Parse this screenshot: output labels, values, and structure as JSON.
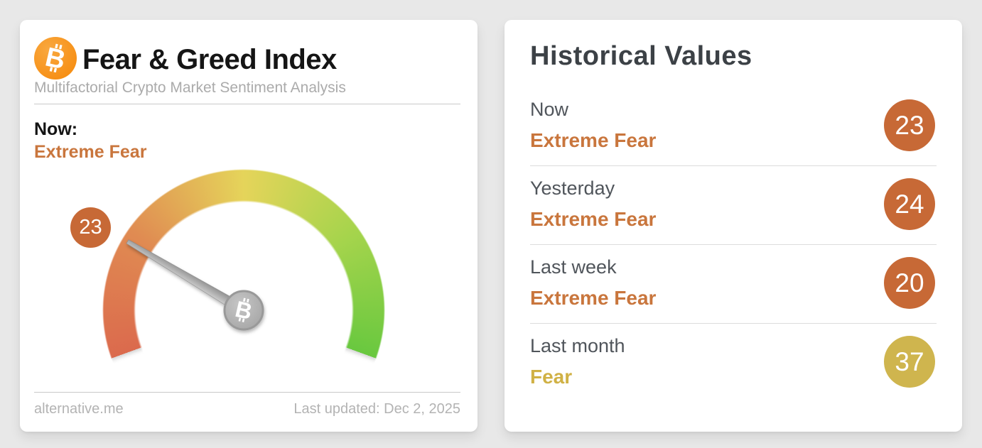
{
  "colors": {
    "accent_orange": "#c76936",
    "accent_orange_text": "#c9763d",
    "accent_gold": "#cfb54e",
    "accent_gold_text": "#d0b145",
    "bitcoin_orange": "#f7931a",
    "needle_gray": "#a7a7a7",
    "card_background": "#ffffff",
    "page_background": "#e8e8e8"
  },
  "left_card": {
    "title": "Fear & Greed Index",
    "subtitle": "Multifactorial Crypto Market Sentiment Analysis",
    "now_label": "Now:",
    "now_sentiment": "Extreme Fear",
    "footer_source": "alternative.me",
    "footer_updated": "Last updated: Dec 2, 2025"
  },
  "right_card": {
    "title": "Historical Values",
    "rows": [
      {
        "label": "Now",
        "sentiment": "Extreme Fear",
        "value": "23",
        "badge_color": "#c76936",
        "sentiment_color": "#c9763d"
      },
      {
        "label": "Yesterday",
        "sentiment": "Extreme Fear",
        "value": "24",
        "badge_color": "#c76936",
        "sentiment_color": "#c9763d"
      },
      {
        "label": "Last week",
        "sentiment": "Extreme Fear",
        "value": "20",
        "badge_color": "#c76936",
        "sentiment_color": "#c9763d"
      },
      {
        "label": "Last month",
        "sentiment": "Fear",
        "value": "37",
        "badge_color": "#cfb54e",
        "sentiment_color": "#d0b145"
      }
    ]
  },
  "chart_data": {
    "type": "gauge",
    "title": "Fear & Greed Index",
    "value": 23,
    "min": 0,
    "max": 100,
    "sentiment": "Extreme Fear",
    "start_angle_deg": 200,
    "end_angle_deg": -20,
    "sweep_deg": 220,
    "arc_colors": [
      {
        "pos_deg": 0,
        "color": "#db6a4d"
      },
      {
        "pos_deg": 55,
        "color": "#e08b52"
      },
      {
        "pos_deg": 110,
        "color": "#e5d45a"
      },
      {
        "pos_deg": 165,
        "color": "#a5d44c"
      },
      {
        "pos_deg": 220,
        "color": "#69c83f"
      }
    ],
    "historical": [
      {
        "label": "Now",
        "sentiment": "Extreme Fear",
        "value": 23
      },
      {
        "label": "Yesterday",
        "sentiment": "Extreme Fear",
        "value": 24
      },
      {
        "label": "Last week",
        "sentiment": "Extreme Fear",
        "value": 20
      },
      {
        "label": "Last month",
        "sentiment": "Fear",
        "value": 37
      }
    ]
  }
}
